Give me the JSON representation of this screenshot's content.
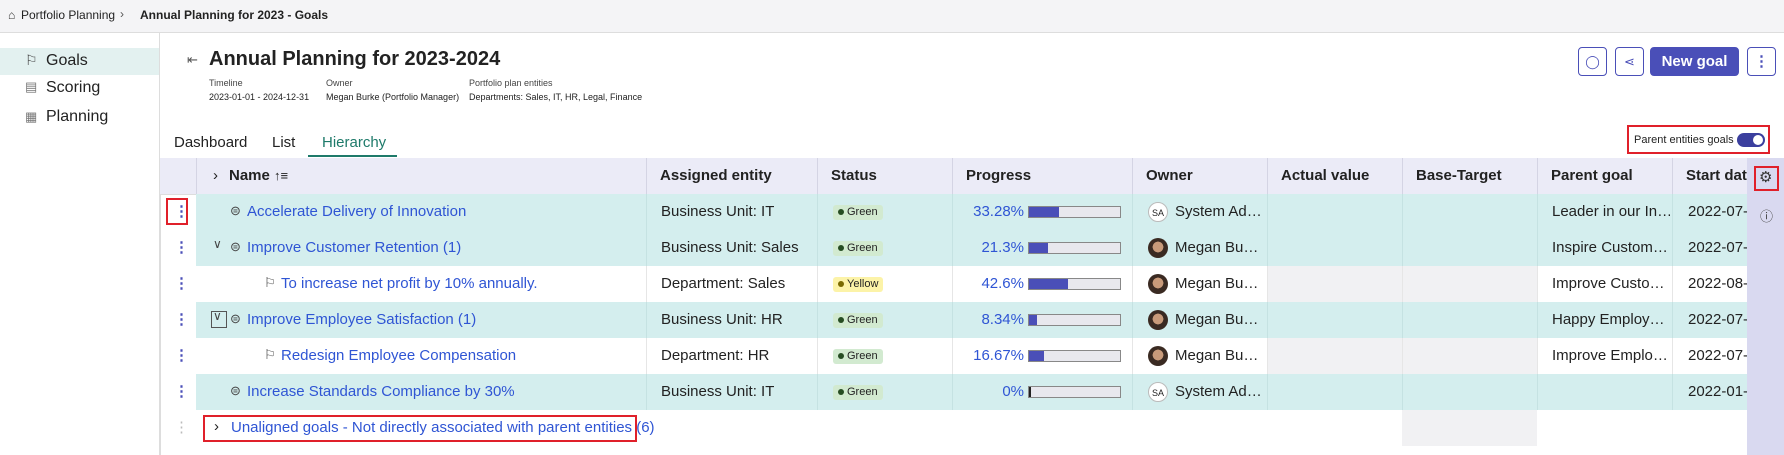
{
  "breadcrumb": [
    "Portfolio Planning",
    "Annual Planning for 2023 - Goals"
  ],
  "sidebar": [
    "Goals",
    "Scoring",
    "Planning"
  ],
  "header": {
    "title": "Annual Planning for 2023-2024",
    "meta": [
      {
        "label": "Timeline",
        "value": "2023-01-01 - 2024-12-31"
      },
      {
        "label": "Owner",
        "value": "Megan Burke (Portfolio Manager)"
      },
      {
        "label": "Portfolio plan entities",
        "value": "Departments: Sales, IT, HR, Legal, Finance"
      }
    ],
    "new_goal": "New goal"
  },
  "tabs": [
    "Dashboard",
    "List",
    "Hierarchy"
  ],
  "toggle_label": "Parent entities goals",
  "table": {
    "columns": [
      "Name",
      "Assigned entity",
      "Status",
      "Progress",
      "Owner",
      "Actual value",
      "Base-Target",
      "Parent goal",
      "Start date"
    ],
    "rows": [
      {
        "name": "Accelerate Delivery of Innovation",
        "entity": "Business Unit: IT",
        "status": "Green",
        "progress": {
          "value": 33.28,
          "label": "33.28%"
        },
        "owner_initials": "SA",
        "owner": "System Ad…",
        "parent_goal": "Leader in our In…",
        "start_date": "2022-07-"
      },
      {
        "name": "Improve Customer Retention (1)",
        "entity": "Business Unit: Sales",
        "status": "Green",
        "progress": {
          "value": 21.3,
          "label": "21.3%"
        },
        "owner": "Megan Bu…",
        "parent_goal": "Inspire Custom…",
        "start_date": "2022-07-"
      },
      {
        "name": "To increase net profit by 10% annually.",
        "entity": "Department: Sales",
        "status": "Yellow",
        "progress": {
          "value": 42.6,
          "label": "42.6%"
        },
        "owner": "Megan Bu…",
        "parent_goal": "Improve Custo…",
        "start_date": "2022-08-"
      },
      {
        "name": "Improve Employee Satisfaction (1)",
        "entity": "Business Unit: HR",
        "status": "Green",
        "progress": {
          "value": 8.34,
          "label": "8.34%"
        },
        "owner": "Megan Bu…",
        "parent_goal": "Happy Employ…",
        "start_date": "2022-07-"
      },
      {
        "name": "Redesign Employee Compensation",
        "entity": "Department: HR",
        "status": "Green",
        "progress": {
          "value": 16.67,
          "label": "16.67%"
        },
        "owner": "Megan Bu…",
        "parent_goal": "Improve Emplo…",
        "start_date": "2022-07-"
      },
      {
        "name": "Increase Standards Compliance by 30%",
        "entity": "Business Unit: IT",
        "status": "Green",
        "progress": {
          "value": 0,
          "label": "0%"
        },
        "owner_initials": "SA",
        "owner": "System Ad…",
        "parent_goal": "",
        "start_date": "2022-01-"
      }
    ],
    "footer": "Unaligned goals - Not directly associated with parent entities (6)"
  }
}
